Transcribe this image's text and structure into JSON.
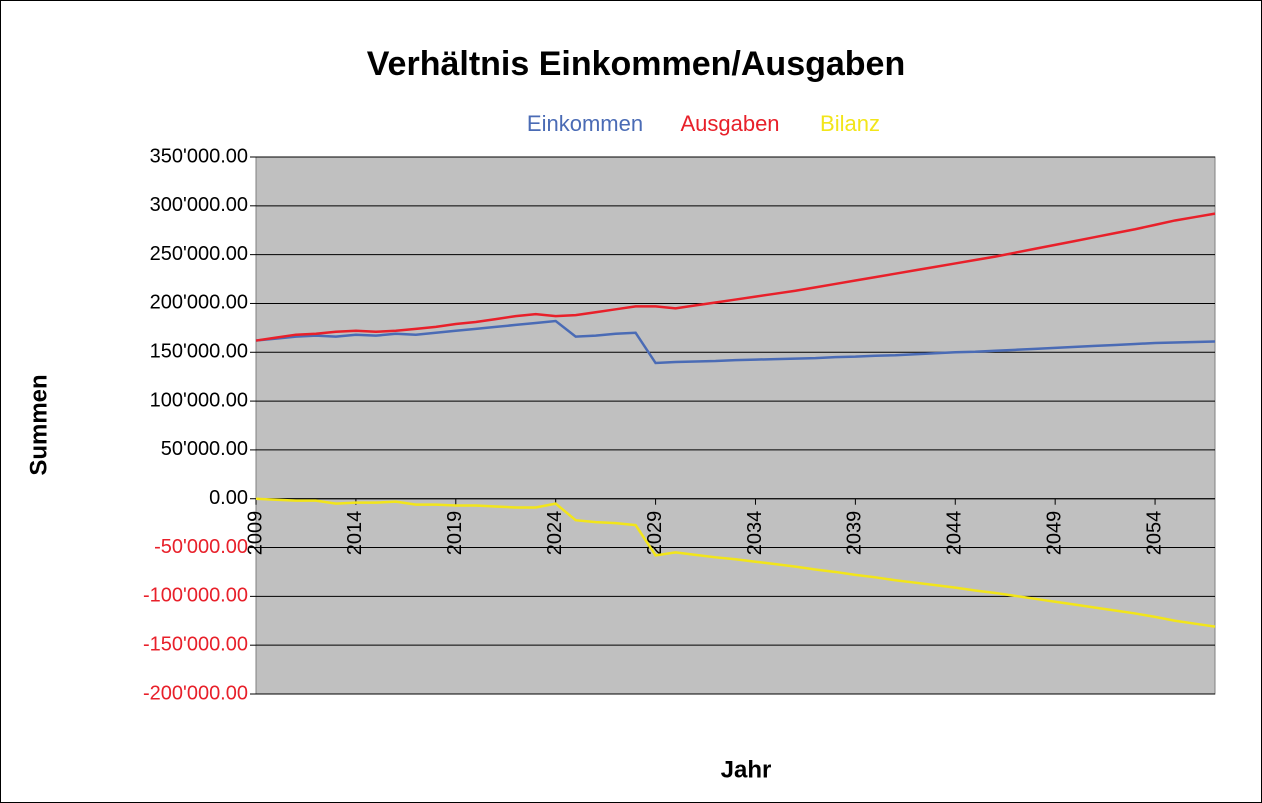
{
  "chart_data": {
    "type": "line",
    "title": "Verhältnis Einkommen/Ausgaben",
    "xlabel": "Jahr",
    "ylabel": "Summen",
    "x": [
      2009,
      2010,
      2011,
      2012,
      2013,
      2014,
      2015,
      2016,
      2017,
      2018,
      2019,
      2020,
      2021,
      2022,
      2023,
      2024,
      2025,
      2026,
      2027,
      2028,
      2029,
      2030,
      2031,
      2032,
      2033,
      2034,
      2035,
      2036,
      2037,
      2038,
      2039,
      2040,
      2041,
      2042,
      2043,
      2044,
      2045,
      2046,
      2047,
      2048,
      2049,
      2050,
      2051,
      2052,
      2053,
      2054,
      2055,
      2056,
      2057
    ],
    "series": [
      {
        "name": "Einkommen",
        "color": "#4a6bb5",
        "values": [
          162000,
          164000,
          166000,
          167000,
          166000,
          168000,
          167000,
          169000,
          168000,
          170000,
          172000,
          174000,
          176000,
          178000,
          180000,
          182000,
          166000,
          167000,
          169000,
          170000,
          139000,
          140000,
          140500,
          141000,
          142000,
          142500,
          143000,
          143500,
          144000,
          145000,
          145500,
          146500,
          147000,
          148000,
          149000,
          150000,
          150500,
          151500,
          152500,
          153500,
          154500,
          155500,
          156500,
          157500,
          158500,
          159500,
          160000,
          160500,
          161000
        ]
      },
      {
        "name": "Ausgaben",
        "color": "#e8202a",
        "values": [
          162000,
          165000,
          168000,
          169000,
          171000,
          172000,
          171000,
          172000,
          174000,
          176000,
          179000,
          181000,
          184000,
          187000,
          189000,
          187000,
          188000,
          191000,
          194000,
          197000,
          197000,
          195000,
          198000,
          201000,
          204000,
          207000,
          210000,
          213000,
          216500,
          220000,
          223500,
          227000,
          230500,
          234000,
          237500,
          241000,
          244500,
          248000,
          252000,
          256000,
          260000,
          264000,
          268000,
          272000,
          276000,
          280500,
          285000,
          288500,
          292000
        ]
      },
      {
        "name": "Bilanz",
        "color": "#f2e51a",
        "values": [
          0,
          -1000,
          -2000,
          -2000,
          -5000,
          -4000,
          -4000,
          -3000,
          -6000,
          -6000,
          -7000,
          -7000,
          -8000,
          -9000,
          -9000,
          -5000,
          -22000,
          -24000,
          -25000,
          -27000,
          -58000,
          -55000,
          -57500,
          -60000,
          -62000,
          -64500,
          -67000,
          -69500,
          -72500,
          -75000,
          -78000,
          -80500,
          -83500,
          -86000,
          -88500,
          -91000,
          -94000,
          -96500,
          -99500,
          -102500,
          -105500,
          -108500,
          -111500,
          -114500,
          -117500,
          -121000,
          -125000,
          -128000,
          -131000
        ]
      }
    ],
    "xlim": [
      2009,
      2057
    ],
    "xticks": [
      2009,
      2014,
      2019,
      2024,
      2029,
      2034,
      2039,
      2044,
      2049,
      2054
    ],
    "ylim": [
      -200000,
      350000
    ],
    "yticks": [
      {
        "value": -200000,
        "label": "-200'000.00"
      },
      {
        "value": -150000,
        "label": "-150'000.00"
      },
      {
        "value": -100000,
        "label": "-100'000.00"
      },
      {
        "value": -50000,
        "label": "-50'000.00"
      },
      {
        "value": 0,
        "label": "0.00"
      },
      {
        "value": 50000,
        "label": "50'000.00"
      },
      {
        "value": 100000,
        "label": "100'000.00"
      },
      {
        "value": 150000,
        "label": "150'000.00"
      },
      {
        "value": 200000,
        "label": "200'000.00"
      },
      {
        "value": 250000,
        "label": "250'000.00"
      },
      {
        "value": 300000,
        "label": "300'000.00"
      },
      {
        "value": 350000,
        "label": "350'000.00"
      }
    ],
    "grid": true,
    "plot_background": "#c0c0c0",
    "negative_tick_color": "#e8202a",
    "legend": "top"
  }
}
